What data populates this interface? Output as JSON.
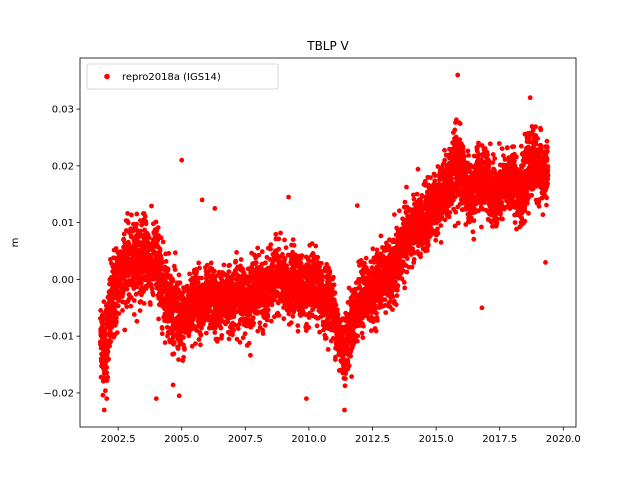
{
  "chart_data": {
    "type": "scatter",
    "title": "TBLP V",
    "xlabel": "",
    "ylabel": "m",
    "xlim": [
      2001.0,
      2020.5
    ],
    "ylim": [
      -0.026,
      0.039
    ],
    "xticks": [
      2002.5,
      2005.0,
      2007.5,
      2010.0,
      2012.5,
      2015.0,
      2017.5,
      2020.0
    ],
    "xtick_labels": [
      "2002.5",
      "2005.0",
      "2007.5",
      "2010.0",
      "2012.5",
      "2015.0",
      "2017.5",
      "2020.0"
    ],
    "yticks": [
      -0.02,
      -0.01,
      0.0,
      0.01,
      0.02,
      0.03
    ],
    "ytick_labels": [
      "−0.02",
      "−0.01",
      "0.00",
      "0.01",
      "0.02",
      "0.03"
    ],
    "grid": false,
    "legend": "top-left",
    "series": [
      {
        "name": "repro2018a (IGS14)",
        "color": "#ff0000",
        "marker": "circle",
        "x": [
          2001.8,
          2002.0,
          2002.2,
          2002.4,
          2002.6,
          2002.8,
          2003.0,
          2003.2,
          2003.4,
          2003.6,
          2003.8,
          2004.0,
          2004.2,
          2004.4,
          2004.6,
          2004.8,
          2005.0,
          2005.2,
          2005.4,
          2005.6,
          2005.8,
          2006.0,
          2006.2,
          2006.4,
          2006.6,
          2006.8,
          2007.0,
          2007.2,
          2007.4,
          2007.6,
          2007.8,
          2008.0,
          2008.2,
          2008.4,
          2008.6,
          2008.8,
          2009.0,
          2009.2,
          2009.4,
          2009.6,
          2009.8,
          2010.0,
          2010.2,
          2010.4,
          2010.6,
          2010.8,
          2011.0,
          2011.2,
          2011.4,
          2011.6,
          2011.8,
          2012.0,
          2012.2,
          2012.4,
          2012.6,
          2012.8,
          2013.0,
          2013.2,
          2013.4,
          2013.6,
          2013.8,
          2014.0,
          2014.2,
          2014.4,
          2014.6,
          2014.8,
          2015.0,
          2015.2,
          2015.4,
          2015.6,
          2015.8,
          2016.0,
          2016.2,
          2016.4,
          2016.6,
          2016.8,
          2017.0,
          2017.2,
          2017.4,
          2017.6,
          2017.8,
          2018.0,
          2018.2,
          2018.4,
          2018.6,
          2018.8,
          2019.0,
          2019.2,
          2019.4
        ],
        "y": [
          -0.01,
          -0.012,
          -0.006,
          -0.002,
          0.001,
          0.003,
          0.002,
          0.004,
          0.003,
          0.005,
          0.002,
          0.004,
          -0.001,
          -0.002,
          -0.005,
          -0.006,
          -0.008,
          -0.006,
          -0.004,
          -0.003,
          -0.005,
          -0.004,
          -0.003,
          -0.005,
          -0.004,
          -0.003,
          -0.004,
          -0.002,
          -0.003,
          -0.004,
          -0.002,
          -0.001,
          -0.003,
          -0.002,
          0.0,
          0.001,
          -0.001,
          -0.002,
          0.0,
          -0.001,
          -0.002,
          -0.002,
          -0.001,
          -0.002,
          -0.004,
          -0.003,
          -0.006,
          -0.011,
          -0.012,
          -0.009,
          -0.006,
          -0.004,
          -0.002,
          -0.003,
          -0.001,
          0.0,
          0.001,
          0.0,
          0.002,
          0.005,
          0.007,
          0.008,
          0.01,
          0.009,
          0.011,
          0.012,
          0.013,
          0.015,
          0.016,
          0.018,
          0.02,
          0.019,
          0.016,
          0.014,
          0.018,
          0.017,
          0.019,
          0.015,
          0.014,
          0.016,
          0.017,
          0.018,
          0.016,
          0.015,
          0.019,
          0.021,
          0.02,
          0.018,
          0.019
        ],
        "spread": [
          0.006,
          0.007,
          0.007,
          0.007,
          0.006,
          0.006,
          0.006,
          0.006,
          0.006,
          0.006,
          0.006,
          0.006,
          0.006,
          0.006,
          0.006,
          0.006,
          0.006,
          0.005,
          0.005,
          0.005,
          0.005,
          0.005,
          0.005,
          0.005,
          0.005,
          0.005,
          0.005,
          0.005,
          0.005,
          0.005,
          0.005,
          0.005,
          0.005,
          0.005,
          0.005,
          0.005,
          0.005,
          0.005,
          0.005,
          0.005,
          0.005,
          0.005,
          0.005,
          0.005,
          0.005,
          0.005,
          0.005,
          0.005,
          0.005,
          0.005,
          0.005,
          0.005,
          0.005,
          0.005,
          0.005,
          0.005,
          0.005,
          0.005,
          0.005,
          0.005,
          0.005,
          0.005,
          0.005,
          0.005,
          0.005,
          0.005,
          0.005,
          0.005,
          0.005,
          0.006,
          0.006,
          0.006,
          0.005,
          0.005,
          0.005,
          0.005,
          0.005,
          0.005,
          0.005,
          0.005,
          0.005,
          0.005,
          0.005,
          0.005,
          0.005,
          0.005,
          0.005,
          0.005,
          0.005
        ],
        "outliers": [
          [
            2001.95,
            -0.023
          ],
          [
            2002.05,
            -0.021
          ],
          [
            2005.0,
            0.021
          ],
          [
            2004.9,
            -0.0205
          ],
          [
            2004.0,
            -0.021
          ],
          [
            2009.9,
            -0.021
          ],
          [
            2011.4,
            -0.023
          ],
          [
            2011.9,
            0.013
          ],
          [
            2015.85,
            0.036
          ],
          [
            2016.8,
            -0.005
          ],
          [
            2018.7,
            0.032
          ],
          [
            2019.3,
            0.003
          ],
          [
            2005.8,
            0.014
          ],
          [
            2006.3,
            0.0125
          ],
          [
            2009.2,
            0.0145
          ],
          [
            2002.05,
            -0.0155
          ]
        ]
      }
    ]
  }
}
